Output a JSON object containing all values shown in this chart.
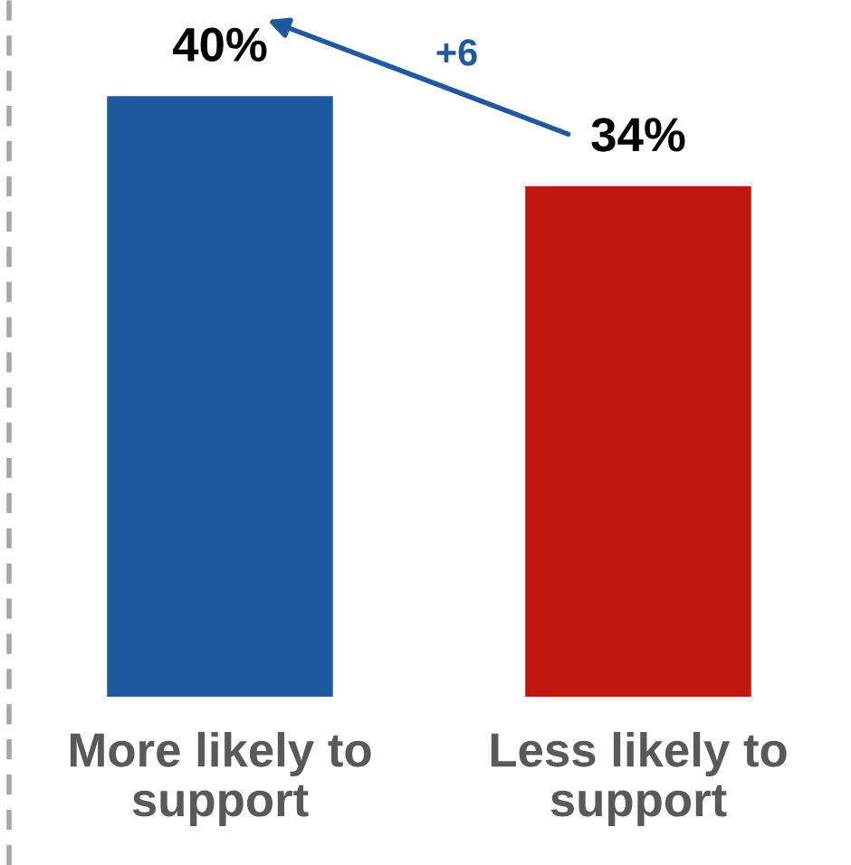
{
  "chart_data": {
    "type": "bar",
    "categories": [
      "More likely to\nsupport",
      "Less likely to\nsupport"
    ],
    "values": [
      40,
      34
    ],
    "colors": [
      "#1f5aa0",
      "#c0160d"
    ],
    "value_labels": [
      "40%",
      "34%"
    ],
    "annotations": [
      "+6"
    ],
    "grid": false,
    "legend": false
  }
}
